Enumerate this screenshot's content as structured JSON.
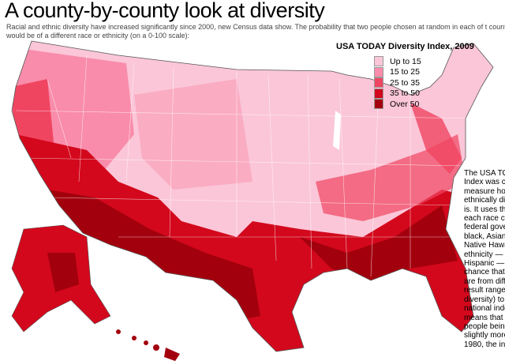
{
  "title": "A county-by-county look at diversity",
  "subtitle": "Racial and ethnic diversity have increased significantly since 2000, new Census data show. The probability that two people chosen at random in each of t counties would be of a different race or ethnicity (on a 0-100 scale):",
  "legend": {
    "title": "USA TODAY Diversity Index, 2009",
    "items": [
      {
        "label": "Up to 15",
        "color": "#fbc6d8"
      },
      {
        "label": "15 to 25",
        "color": "#f98cab"
      },
      {
        "label": "25 to 35",
        "color": "#f04561"
      },
      {
        "label": "35 to 50",
        "color": "#d3081c"
      },
      {
        "label": "Over 50",
        "color": "#a3000d"
      }
    ]
  },
  "note_lines": [
    "The USA TO",
    "Index was cr",
    "measure hov",
    "ethnically div",
    "is. It uses the",
    "each race co",
    "federal gove",
    "black, Asian,",
    "Native Hawa",
    "ethnicity — H",
    "Hispanic — t",
    "chance that",
    "are from diffe",
    "result ranges",
    "diversity)  to",
    "national inde",
    "means that t",
    "people being",
    "slightly more",
    "1980, the inc"
  ]
}
